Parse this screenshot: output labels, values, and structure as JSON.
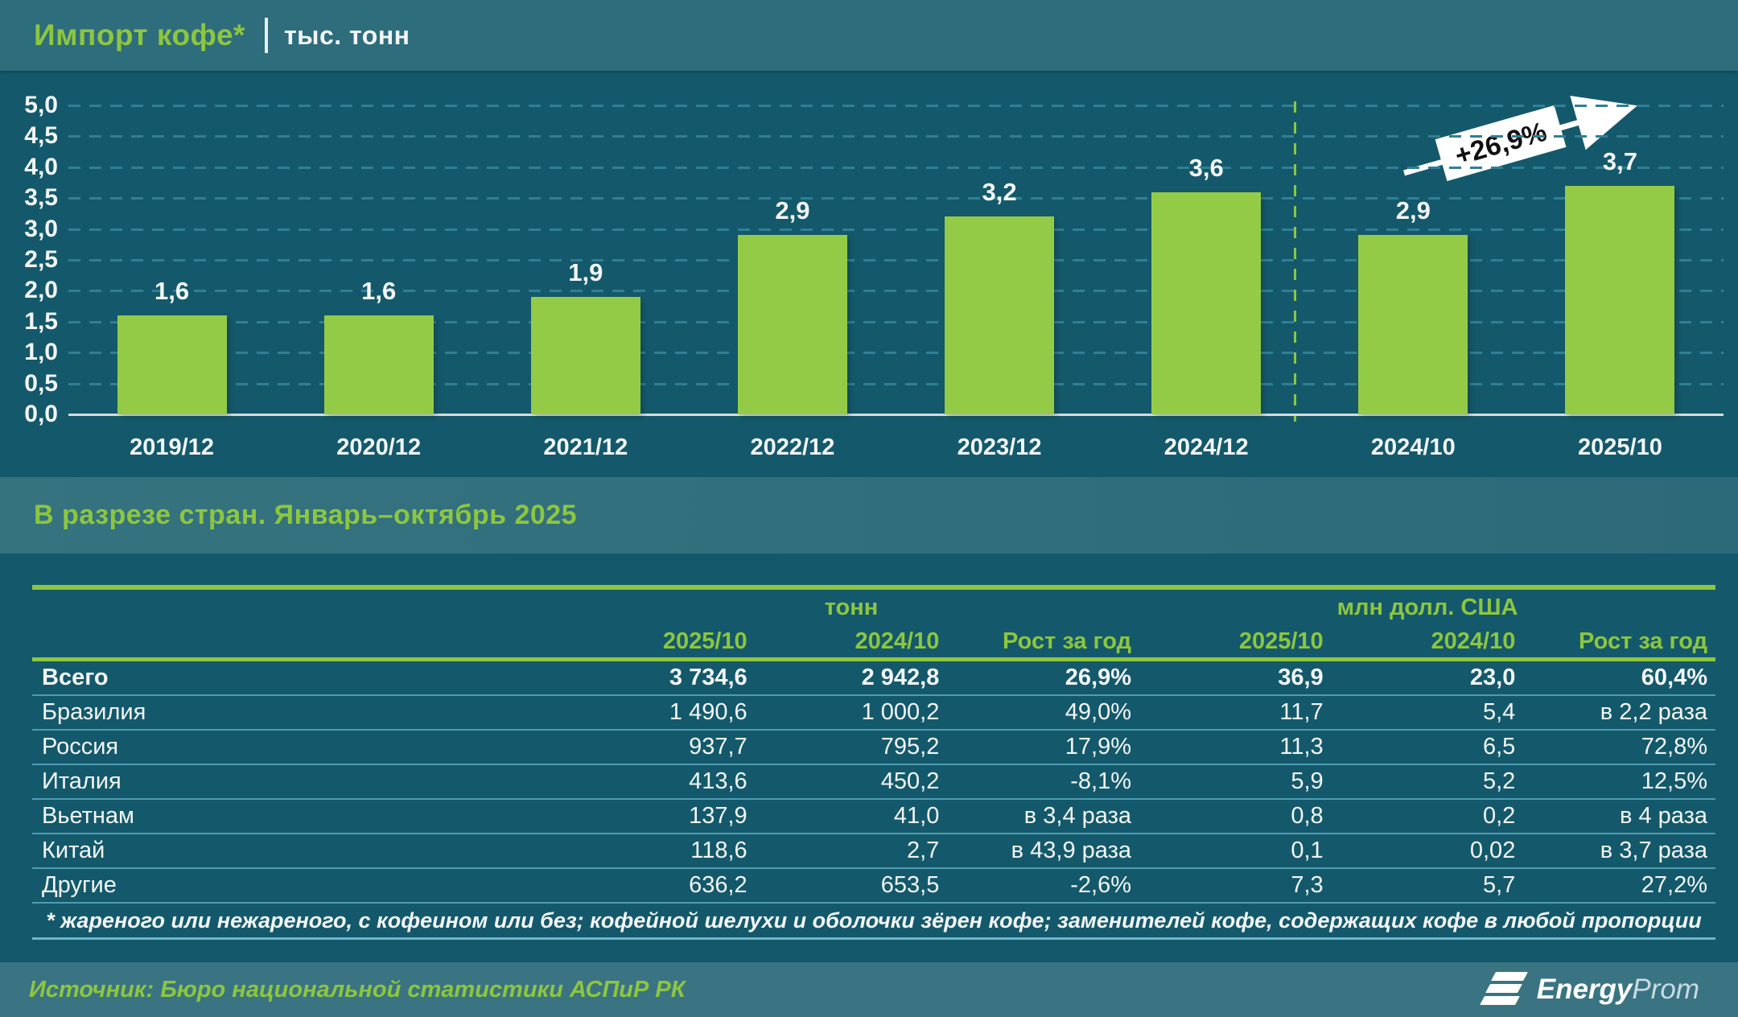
{
  "header": {
    "title": "Импорт кофе*",
    "unit": "тыс. тонн"
  },
  "chart_data": {
    "type": "bar",
    "title": "Импорт кофе, тыс. тонн",
    "categories": [
      "2019/12",
      "2020/12",
      "2021/12",
      "2022/12",
      "2023/12",
      "2024/12",
      "2024/10",
      "2025/10"
    ],
    "values": [
      1.6,
      1.6,
      1.9,
      2.9,
      3.2,
      3.6,
      2.9,
      3.7
    ],
    "value_labels": [
      "1,6",
      "1,6",
      "1,9",
      "2,9",
      "3,2",
      "3,6",
      "2,9",
      "3,7"
    ],
    "ylim": [
      0,
      5
    ],
    "ytick_step": 0.5,
    "ytick_labels": [
      "5,0",
      "4,5",
      "4,0",
      "3,5",
      "3,0",
      "2,5",
      "2,0",
      "1,5",
      "1,0",
      "0,5",
      "0,0"
    ],
    "grid": "horizontal dashed",
    "separator_after_category": "2024/12",
    "annotation": "+26,9%",
    "bar_color": "#94cb46"
  },
  "section": {
    "title": "В разрезе стран. Январь–октябрь 2025"
  },
  "table": {
    "group_headers": [
      {
        "label": "тонн",
        "span": 3
      },
      {
        "label": "млн долл. США",
        "span": 3
      }
    ],
    "col_headers": [
      "2025/10",
      "2024/10",
      "Рост за год",
      "2025/10",
      "2024/10",
      "Рост за год"
    ],
    "rows": [
      {
        "name": "Всего",
        "bold": true,
        "cells": [
          "3 734,6",
          "2 942,8",
          "26,9%",
          "36,9",
          "23,0",
          "60,4%"
        ]
      },
      {
        "name": "Бразилия",
        "bold": false,
        "cells": [
          "1 490,6",
          "1 000,2",
          "49,0%",
          "11,7",
          "5,4",
          "в 2,2 раза"
        ]
      },
      {
        "name": "Россия",
        "bold": false,
        "cells": [
          "937,7",
          "795,2",
          "17,9%",
          "11,3",
          "6,5",
          "72,8%"
        ]
      },
      {
        "name": "Италия",
        "bold": false,
        "cells": [
          "413,6",
          "450,2",
          "-8,1%",
          "5,9",
          "5,2",
          "12,5%"
        ]
      },
      {
        "name": "Вьетнам",
        "bold": false,
        "cells": [
          "137,9",
          "41,0",
          "в 3,4 раза",
          "0,8",
          "0,2",
          "в 4 раза"
        ]
      },
      {
        "name": "Китай",
        "bold": false,
        "cells": [
          "118,6",
          "2,7",
          "в 43,9 раза",
          "0,1",
          "0,02",
          "в 3,7 раза"
        ]
      },
      {
        "name": "Другие",
        "bold": false,
        "cells": [
          "636,2",
          "653,5",
          "-2,6%",
          "7,3",
          "5,7",
          "27,2%"
        ]
      }
    ],
    "footnote": "* жареного или нежареного, с кофеином или без; кофейной шелухи и оболочки зёрен кофе; заменителей кофе, содержащих кофе в любой пропорции"
  },
  "footer": {
    "source": "Источник: Бюро национальной статистики АСПиР РК",
    "logo": {
      "bold": "Energy",
      "light": "Prom"
    }
  },
  "colors": {
    "background": "#14596b",
    "band": "#2e6d7c",
    "footer_band": "#3a7482",
    "accent_green": "#8dc63f",
    "bar_green": "#94cb46",
    "gridline": "#2f7f96",
    "text_white": "#f3f6f7"
  }
}
